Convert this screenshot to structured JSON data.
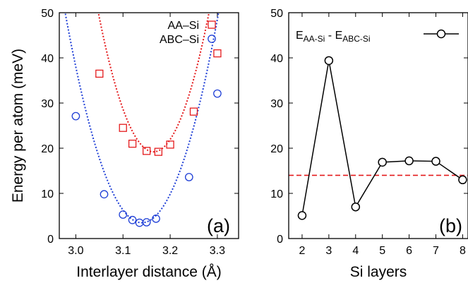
{
  "chart_data": [
    {
      "type": "scatter",
      "panel_label": "(a)",
      "xlabel": "Interlayer distance (Å)",
      "ylabel": "Energy per atom (meV)",
      "xlim": [
        2.965,
        3.345
      ],
      "ylim": [
        0,
        50
      ],
      "xticks": [
        3.0,
        3.1,
        3.2,
        3.3
      ],
      "xtick_labels": [
        "3.0",
        "3.1",
        "3.2",
        "3.3"
      ],
      "yticks": [
        0,
        10,
        20,
        30,
        40,
        50
      ],
      "ytick_labels": [
        "0",
        "10",
        "20",
        "30",
        "40",
        "50"
      ],
      "legend_position": "top-right",
      "series": [
        {
          "name": "AA–Si",
          "marker": "square",
          "color": "#e41a1c",
          "x": [
            3.05,
            3.1,
            3.12,
            3.15,
            3.175,
            3.2,
            3.25,
            3.3
          ],
          "y": [
            36.5,
            24.5,
            21.0,
            19.4,
            19.2,
            20.8,
            28.1,
            41.0
          ],
          "fit": {
            "style": "dotted",
            "x0": 3.165,
            "y0": 19.2,
            "k": 2240
          }
        },
        {
          "name": "ABC–Si",
          "marker": "circle",
          "color": "#1f3fd6",
          "x": [
            3.0,
            3.06,
            3.1,
            3.12,
            3.135,
            3.15,
            3.17,
            3.24,
            3.3
          ],
          "y": [
            27.1,
            9.8,
            5.3,
            4.1,
            3.5,
            3.6,
            4.4,
            13.6,
            32.1
          ],
          "fit": {
            "style": "dotted",
            "x0": 3.14,
            "y0": 3.5,
            "k": 1760
          }
        }
      ]
    },
    {
      "type": "line",
      "panel_label": "(b)",
      "xlabel": "Si layers",
      "ylabel": "",
      "xlim": [
        1.5,
        8.2
      ],
      "ylim": [
        0,
        50
      ],
      "xticks": [
        2,
        3,
        4,
        5,
        6,
        7,
        8
      ],
      "xtick_labels": [
        "2",
        "3",
        "4",
        "5",
        "6",
        "7",
        "8"
      ],
      "yticks": [
        0,
        10,
        20,
        30,
        40,
        50
      ],
      "ytick_labels": [
        "0",
        "10",
        "20",
        "30",
        "40",
        "50"
      ],
      "legend_position": "top-right",
      "series": [
        {
          "name_main": "E",
          "name_sub1": "AA-Si",
          "name_mid": " - E",
          "name_sub2": "ABC-Si",
          "marker": "circle",
          "color": "#000000",
          "x": [
            2,
            3,
            4,
            5,
            6,
            7,
            8
          ],
          "y": [
            5.1,
            39.4,
            7.0,
            16.9,
            17.2,
            17.1,
            13.0
          ]
        }
      ],
      "reference_line": {
        "y": 14.0,
        "style": "dashed",
        "color": "#e41a1c"
      }
    }
  ]
}
